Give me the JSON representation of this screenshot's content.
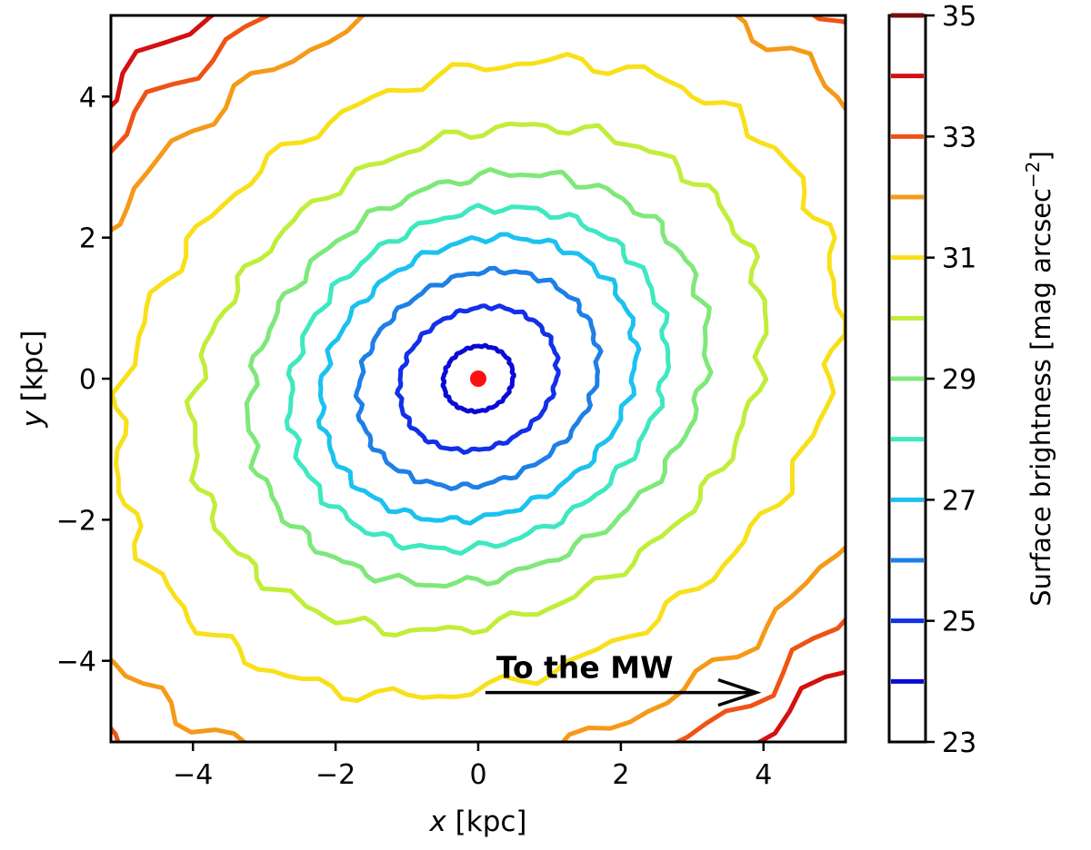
{
  "chart_data": {
    "type": "contour",
    "xlabel": {
      "var": "x",
      "unit": " [kpc]"
    },
    "ylabel": {
      "var": "y",
      "unit": " [kpc]"
    },
    "xlim": [
      -5.15,
      5.15
    ],
    "ylim": [
      -5.15,
      5.15
    ],
    "xticks": [
      -4,
      -2,
      0,
      2,
      4
    ],
    "yticks": [
      -4,
      -2,
      0,
      2,
      4
    ],
    "colorbar": {
      "label": "Surface brightness [mag arcsec",
      "label_sup": "−2",
      "label_end": "]",
      "range": [
        23,
        35
      ],
      "ticks": [
        23,
        25,
        27,
        29,
        31,
        33,
        35
      ],
      "levels": [
        {
          "value": 24,
          "color": "#0a0ad6"
        },
        {
          "value": 25,
          "color": "#1230e8"
        },
        {
          "value": 26,
          "color": "#1e7fe6"
        },
        {
          "value": 27,
          "color": "#1cc2ef"
        },
        {
          "value": 28,
          "color": "#3ee8c0"
        },
        {
          "value": 29,
          "color": "#7fe87a"
        },
        {
          "value": 30,
          "color": "#c0ee3a"
        },
        {
          "value": 31,
          "color": "#f8e01a"
        },
        {
          "value": 32,
          "color": "#f59a18"
        },
        {
          "value": 33,
          "color": "#ef5315"
        },
        {
          "value": 34,
          "color": "#d41010"
        },
        {
          "value": 35,
          "color": "#7c0a0a"
        }
      ]
    },
    "contours": [
      {
        "level": 24,
        "center": [
          0,
          0
        ],
        "a": 0.5,
        "b": 0.45,
        "theta_deg": 30
      },
      {
        "level": 25,
        "center": [
          0,
          0
        ],
        "a": 1.15,
        "b": 0.97,
        "theta_deg": 30
      },
      {
        "level": 26,
        "center": [
          0,
          0
        ],
        "a": 1.75,
        "b": 1.45,
        "theta_deg": 30
      },
      {
        "level": 27,
        "center": [
          0,
          0
        ],
        "a": 2.3,
        "b": 1.9,
        "theta_deg": 30
      },
      {
        "level": 28,
        "center": [
          0,
          0
        ],
        "a": 2.75,
        "b": 2.3,
        "theta_deg": 30
      },
      {
        "level": 29,
        "center": [
          0,
          0
        ],
        "a": 3.35,
        "b": 2.75,
        "theta_deg": 30
      },
      {
        "level": 30,
        "center": [
          0,
          0
        ],
        "a": 4.2,
        "b": 3.35,
        "theta_deg": 30
      },
      {
        "level": 31,
        "center": [
          0,
          0
        ],
        "a": 5.3,
        "b": 4.2,
        "theta_deg": 30
      },
      {
        "level": 32,
        "center": [
          0,
          0
        ],
        "a": 6.5,
        "b": 5.25,
        "theta_deg": 30
      },
      {
        "level": 33,
        "center": [
          0,
          0
        ],
        "a": 7.3,
        "b": 5.9,
        "theta_deg": 30
      },
      {
        "level": 34,
        "center": [
          0,
          0
        ],
        "a": 8.0,
        "b": 6.4,
        "theta_deg": 30
      }
    ],
    "center_marker": {
      "x": 0,
      "y": 0,
      "color": "#ff1010"
    },
    "annotation": {
      "text": "To the MW",
      "arrow_from": [
        0.1,
        -4.45
      ],
      "arrow_to": [
        3.9,
        -4.45
      ]
    }
  }
}
